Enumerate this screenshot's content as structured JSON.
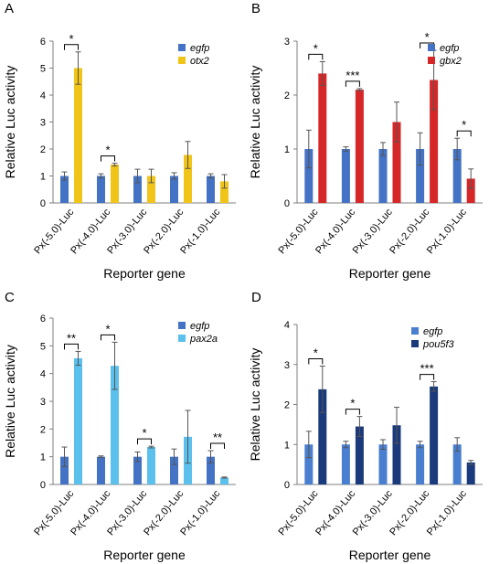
{
  "chart_data": [
    {
      "panel": "A",
      "type": "bar",
      "ylabel": "Relative Luc activity",
      "xlabel": "Reporter gene",
      "ylim": [
        0,
        6
      ],
      "yticks": [
        "0",
        "1",
        "2",
        "3",
        "4",
        "5",
        "6"
      ],
      "categories": [
        "Px(-5.0)-Luc",
        "Px(-4.0)-Luc",
        "Px(-3.0)-Luc",
        "Px(-2.0)-Luc",
        "Px(-1.0)-Luc"
      ],
      "series": [
        {
          "name": "egfp",
          "color": "#4472c4",
          "values": [
            1.0,
            1.0,
            1.0,
            1.0,
            1.0
          ],
          "errors": [
            0.15,
            0.08,
            0.25,
            0.12,
            0.08
          ]
        },
        {
          "name": "otx2",
          "color": "#f0c419",
          "values": [
            5.0,
            1.42,
            1.0,
            1.78,
            0.8
          ],
          "errors": [
            0.6,
            0.05,
            0.25,
            0.5,
            0.25
          ]
        }
      ],
      "significance": [
        "*",
        "*",
        "",
        "",
        ""
      ]
    },
    {
      "panel": "B",
      "type": "bar",
      "ylabel": "Relative Luc activity",
      "xlabel": "Reporter gene",
      "ylim": [
        0,
        3
      ],
      "yticks": [
        "0",
        "1",
        "2",
        "3"
      ],
      "categories": [
        "Px(-5.0)-Luc",
        "Px(-4.0)-Luc",
        "Px(-3.0)-Luc",
        "Px(-2.0)-Luc",
        "Px(-1.0)-Luc"
      ],
      "series": [
        {
          "name": "egfp",
          "color": "#4472c4",
          "values": [
            1.0,
            1.0,
            1.0,
            1.0,
            1.0
          ],
          "errors": [
            0.35,
            0.04,
            0.12,
            0.3,
            0.2
          ]
        },
        {
          "name": "gbx2",
          "color": "#d62728",
          "values": [
            2.4,
            2.1,
            1.5,
            2.28,
            0.45
          ],
          "errors": [
            0.22,
            0.02,
            0.37,
            0.55,
            0.18
          ]
        }
      ],
      "significance": [
        "*",
        "***",
        "",
        "*",
        "*"
      ]
    },
    {
      "panel": "C",
      "type": "bar",
      "ylabel": "Relative Luc activity",
      "xlabel": "Reporter gene",
      "ylim": [
        0,
        6
      ],
      "yticks": [
        "0",
        "1",
        "2",
        "3",
        "4",
        "5",
        "6"
      ],
      "categories": [
        "Px(-5.0)-Luc",
        "Px(-4.0)-Luc",
        "Px(-3.0)-Luc",
        "Px(-2.0)-Luc",
        "Px(-1.0)-Luc"
      ],
      "series": [
        {
          "name": "egfp",
          "color": "#4472c4",
          "values": [
            1.0,
            1.0,
            1.0,
            1.0,
            1.0
          ],
          "errors": [
            0.35,
            0.03,
            0.17,
            0.28,
            0.22
          ]
        },
        {
          "name": "pax2a",
          "color": "#5bc0eb",
          "values": [
            4.55,
            4.28,
            1.35,
            1.72,
            0.25
          ],
          "errors": [
            0.25,
            0.85,
            0.03,
            0.95,
            0.02
          ]
        }
      ],
      "significance": [
        "**",
        "*",
        "*",
        "",
        "**"
      ]
    },
    {
      "panel": "D",
      "type": "bar",
      "ylabel": "Relative Luc activity",
      "xlabel": "Reporter gene",
      "ylim": [
        0,
        4
      ],
      "yticks": [
        "0",
        "1",
        "2",
        "3",
        "4"
      ],
      "categories": [
        "Px(-5.0)-Luc",
        "Px(-4.0)-Luc",
        "Px(-3.0)-Luc",
        "Px(-2.0)-Luc",
        "Px(-1.0)-Luc"
      ],
      "series": [
        {
          "name": "egfp",
          "color": "#4a7fd0",
          "values": [
            1.0,
            1.0,
            1.0,
            1.0,
            1.0
          ],
          "errors": [
            0.33,
            0.08,
            0.12,
            0.08,
            0.17
          ]
        },
        {
          "name": "pou5f3",
          "color": "#1a3a7c",
          "values": [
            2.38,
            1.45,
            1.48,
            2.45,
            0.55
          ],
          "errors": [
            0.58,
            0.25,
            0.45,
            0.12,
            0.05
          ]
        }
      ],
      "significance": [
        "*",
        "*",
        "",
        "***",
        ""
      ]
    }
  ]
}
